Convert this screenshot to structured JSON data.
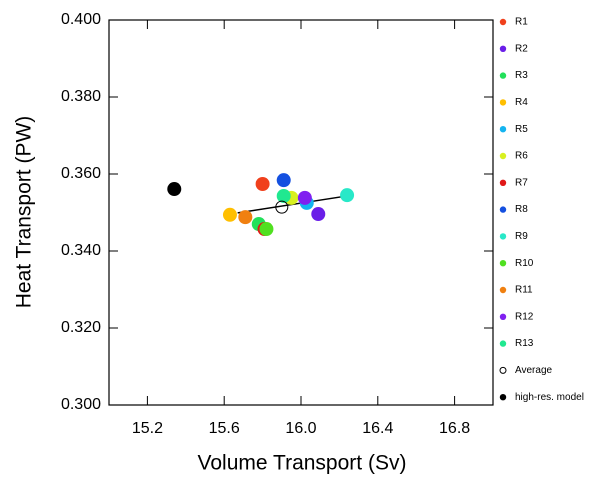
{
  "chart_data": {
    "type": "scatter",
    "x_label": "Volume Transport (Sv)",
    "y_label": "Heat Transport (PW)",
    "xlim": [
      15.0,
      17.0
    ],
    "ylim": [
      0.3,
      0.4
    ],
    "xticks": [
      15.2,
      15.6,
      {
        "value": 16.0,
        "label": "16.0"
      },
      16.4,
      16.8
    ],
    "yticks": [
      {
        "value": 0.3,
        "label": "0.300"
      },
      {
        "value": 0.32,
        "label": "0.320"
      },
      {
        "value": 0.34,
        "label": "0.340"
      },
      {
        "value": 0.36,
        "label": "0.360"
      },
      {
        "value": 0.38,
        "label": "0.380"
      },
      {
        "value": 0.4,
        "label": "0.400"
      }
    ],
    "series": [
      {
        "name": "R1",
        "color": "#f0401c",
        "x": [
          15.8
        ],
        "values": [
          0.3574
        ]
      },
      {
        "name": "R2",
        "color": "#6a1ee8",
        "x": [
          16.09
        ],
        "values": [
          0.3496
        ]
      },
      {
        "name": "R3",
        "color": "#22e05a",
        "x": [
          15.78
        ],
        "values": [
          0.347
        ]
      },
      {
        "name": "R4",
        "color": "#ffbf00",
        "x": [
          15.63
        ],
        "values": [
          0.3494
        ]
      },
      {
        "name": "R5",
        "color": "#14b4f0",
        "x": [
          16.03
        ],
        "values": [
          0.3525
        ]
      },
      {
        "name": "R6",
        "color": "#d8f020",
        "x": [
          15.95
        ],
        "values": [
          0.3538
        ]
      },
      {
        "name": "R7",
        "color": "#e01818",
        "x": [
          15.81
        ],
        "values": [
          0.3457
        ]
      },
      {
        "name": "R8",
        "color": "#1450e0",
        "x": [
          15.91
        ],
        "values": [
          0.3584
        ]
      },
      {
        "name": "R9",
        "color": "#28e8c8",
        "x": [
          16.24
        ],
        "values": [
          0.3545
        ]
      },
      {
        "name": "R10",
        "color": "#50e020",
        "x": [
          15.82
        ],
        "values": [
          0.3457
        ]
      },
      {
        "name": "R11",
        "color": "#f08010",
        "x": [
          15.71
        ],
        "values": [
          0.3488
        ]
      },
      {
        "name": "R12",
        "color": "#8020f0",
        "x": [
          16.02
        ],
        "values": [
          0.3538
        ]
      },
      {
        "name": "R13",
        "color": "#20e890",
        "x": [
          15.91
        ],
        "values": [
          0.3543
        ]
      },
      {
        "name": "Average",
        "color": "#000000",
        "filled": false,
        "x": [
          15.9
        ],
        "values": [
          0.3514
        ]
      },
      {
        "name": "high-res. model",
        "color": "#000000",
        "x": [
          15.34
        ],
        "values": [
          0.3561
        ]
      }
    ],
    "fit_line": {
      "color": "#000000",
      "x": [
        15.67,
        16.24
      ],
      "values": [
        0.3499,
        0.3543
      ]
    }
  }
}
